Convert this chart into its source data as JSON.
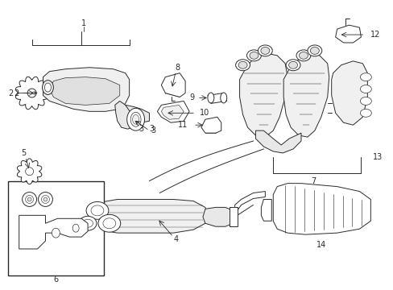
{
  "background_color": "#ffffff",
  "line_color": "#2a2a2a",
  "fig_width": 4.89,
  "fig_height": 3.6,
  "dpi": 100,
  "lw": 0.7,
  "lw_thick": 1.0,
  "fs": 7.0
}
